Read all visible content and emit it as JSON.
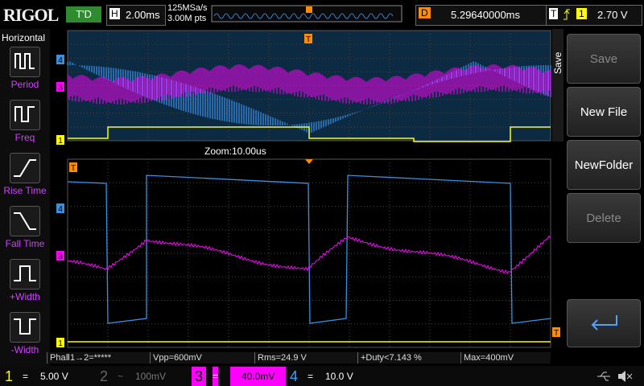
{
  "top_bar": {
    "logo": "RIGOL",
    "status": "T'D",
    "timebase_label": "H",
    "timebase": "2.00ms",
    "sample_rate": "125MSa/s",
    "memory_depth": "3.00M pts",
    "delay_label": "D",
    "delay": "5.29640000ms",
    "trigger_label": "T",
    "trigger_source": "1",
    "trigger_level": "2.70 V"
  },
  "left_menu": {
    "title": "Horizontal",
    "items": [
      "Period",
      "Freq",
      "Rise Time",
      "Fall Time",
      "+Width",
      "-Width"
    ]
  },
  "zoom_label": "Zoom:10.00us",
  "markers": {
    "ch1": "1",
    "ch3": "3",
    "ch4": "4",
    "trigger": "T"
  },
  "measurements": [
    "PhaⅡ1→2=*****",
    "Vpp=600mV",
    "Rms=24.9 V",
    "+Duty<7.143 %",
    "Max=400mV"
  ],
  "channels": [
    {
      "number": "1",
      "coupling": "=",
      "scale": "5.00 V"
    },
    {
      "number": "2",
      "coupling": "~",
      "scale": "100mV"
    },
    {
      "number": "3",
      "coupling": "=",
      "scale": "40.0mV"
    },
    {
      "number": "4",
      "coupling": "=",
      "scale": "10.0 V"
    }
  ],
  "right_menu": {
    "title": "Save",
    "buttons": [
      "Save",
      "New File",
      "NewFolder",
      "Delete"
    ]
  }
}
